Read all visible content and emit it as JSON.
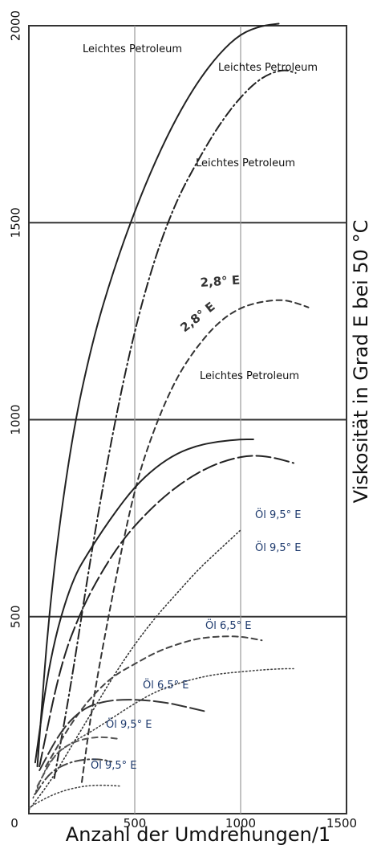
{
  "chart_data": {
    "type": "line",
    "xlabel": "Anzahl der Umdrehungen/1",
    "ylabel": "Viskosität in Grad E bei 50 °C",
    "xlim": [
      0,
      1500
    ],
    "ylim": [
      0,
      2000
    ],
    "x_ticks": [
      "0",
      "500",
      "1000",
      "1500"
    ],
    "y_ticks": [
      "500",
      "1000",
      "1500",
      "2000"
    ],
    "horizontal_gridlines": [
      500,
      1000,
      1500,
      2000
    ],
    "vertical_gridlines": [
      500,
      1000
    ],
    "legend": "none",
    "series": [
      {
        "label_ref": "petrol_1",
        "style": "solid",
        "color": "#222222",
        "x": [
          40,
          100,
          200,
          300,
          400,
          500,
          600,
          700,
          800,
          900,
          1000,
          1100,
          1180
        ],
        "y": [
          120,
          550,
          950,
          1200,
          1380,
          1530,
          1660,
          1770,
          1860,
          1930,
          1980,
          2000,
          2005
        ]
      },
      {
        "label_ref": "petrol_2",
        "style": "dash-dot",
        "color": "#222222",
        "x": [
          120,
          200,
          300,
          400,
          500,
          600,
          700,
          800,
          900,
          1000,
          1100,
          1200,
          1260
        ],
        "y": [
          90,
          330,
          680,
          980,
          1230,
          1420,
          1560,
          1660,
          1750,
          1820,
          1870,
          1890,
          1880
        ]
      },
      {
        "label_ref": "petrol_3",
        "style": "dashed",
        "color": "#333333",
        "x": [
          250,
          300,
          400,
          500,
          600,
          700,
          800,
          900,
          1000,
          1100,
          1200,
          1270,
          1320
        ],
        "y": [
          80,
          280,
          570,
          830,
          990,
          1110,
          1190,
          1250,
          1285,
          1300,
          1305,
          1295,
          1285
        ]
      },
      {
        "label_ref": "deg_1",
        "style": "solid",
        "color": "#222222",
        "x": [
          30,
          100,
          200,
          300,
          400,
          500,
          600,
          700,
          800,
          900,
          1000,
          1060
        ],
        "y": [
          130,
          400,
          590,
          680,
          760,
          830,
          880,
          915,
          935,
          945,
          950,
          950
        ]
      },
      {
        "label_ref": "deg_2",
        "style": "long-dash",
        "color": "#222222",
        "x": [
          50,
          150,
          250,
          350,
          450,
          550,
          650,
          750,
          850,
          950,
          1050,
          1150,
          1250
        ],
        "y": [
          120,
          380,
          520,
          620,
          700,
          760,
          810,
          850,
          880,
          900,
          910,
          905,
          890
        ]
      },
      {
        "label_ref": "petrol_4",
        "style": "dotted",
        "color": "#333333",
        "x": [
          0,
          100,
          200,
          300,
          400,
          500,
          600,
          700,
          800,
          900,
          1000
        ],
        "y": [
          10,
          80,
          170,
          260,
          350,
          430,
          500,
          560,
          620,
          670,
          720
        ]
      },
      {
        "label_ref": "oil_1",
        "style": "dashed",
        "color": "#444444",
        "x": [
          80,
          200,
          300,
          400,
          500,
          600,
          700,
          800,
          900,
          1000,
          1100
        ],
        "y": [
          120,
          230,
          300,
          350,
          380,
          410,
          430,
          445,
          450,
          450,
          440
        ]
      },
      {
        "label_ref": "oil_2",
        "style": "dotted",
        "color": "#444444",
        "x": [
          20,
          100,
          200,
          300,
          400,
          500,
          600,
          700,
          800,
          900,
          1000,
          1100,
          1200,
          1250
        ],
        "y": [
          40,
          140,
          180,
          210,
          245,
          280,
          310,
          330,
          345,
          355,
          360,
          365,
          368,
          368
        ]
      },
      {
        "label_ref": "oil_3",
        "style": "long-dash",
        "color": "#333333",
        "x": [
          50,
          150,
          250,
          350,
          450,
          550,
          650,
          750,
          830
        ],
        "y": [
          110,
          210,
          265,
          285,
          290,
          288,
          282,
          270,
          260
        ]
      },
      {
        "label_ref": "oil_4",
        "style": "dashed",
        "color": "#555555",
        "x": [
          40,
          120,
          200,
          280,
          350,
          420
        ],
        "y": [
          70,
          150,
          180,
          192,
          195,
          190
        ]
      },
      {
        "label_ref": "oil_5",
        "style": "dash-dot",
        "color": "#444444",
        "x": [
          30,
          100,
          180,
          260,
          340,
          390
        ],
        "y": [
          50,
          105,
          128,
          138,
          138,
          132
        ]
      },
      {
        "label_ref": "oil_6",
        "style": "dotted",
        "color": "#444444",
        "x": [
          0,
          80,
          160,
          240,
          300,
          380,
          430
        ],
        "y": [
          15,
          40,
          58,
          68,
          72,
          72,
          70
        ]
      }
    ],
    "annotations": {
      "petrol_1": "Leichtes Petroleum",
      "petrol_2": "Leichtes Petroleum",
      "petrol_3": "Leichtes Petroleum",
      "petrol_4": "Leichtes Petroleum",
      "deg_1": "2,8° E",
      "deg_2": "2,8° E",
      "oil_1": "Öl 9,5° E",
      "oil_2": "Öl 9,5° E",
      "oil_3": "Öl 6,5° E",
      "oil_4": "Öl 6,5° E",
      "oil_5": "Öl 9,5° E",
      "oil_6": "Öl 9,5° E"
    }
  }
}
